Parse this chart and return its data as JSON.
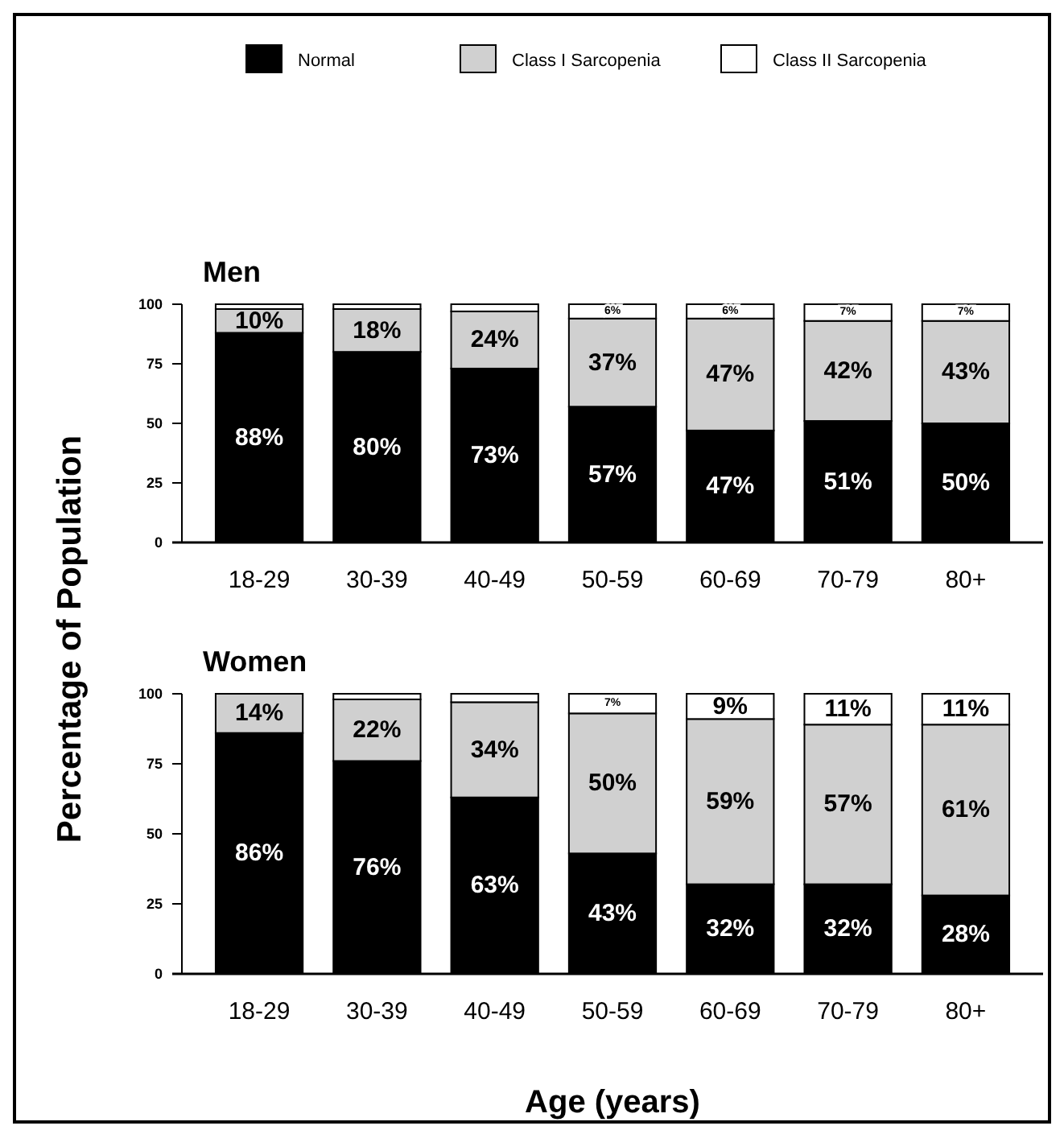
{
  "chart_data": [
    {
      "type": "bar",
      "title": "Men",
      "ylabel": "Percentage of Population",
      "stacked": true,
      "legend": "top",
      "ylim": [
        0,
        100
      ],
      "yticks": [
        0,
        25,
        50,
        75,
        100
      ],
      "categories": [
        "18-29",
        "30-39",
        "40-49",
        "50-59",
        "60-69",
        "70-79",
        "80+"
      ],
      "series": [
        {
          "name": "Normal",
          "color": "#000000",
          "values": [
            88,
            80,
            73,
            57,
            47,
            51,
            50
          ],
          "value_labels": [
            "88%",
            "80%",
            "73%",
            "57%",
            "47%",
            "51%",
            "50%"
          ]
        },
        {
          "name": "Class I Sarcopenia",
          "color": "#d0d0d0",
          "values": [
            10,
            18,
            24,
            37,
            47,
            42,
            43
          ],
          "value_labels": [
            "10%",
            "18%",
            "24%",
            "37%",
            "47%",
            "42%",
            "43%"
          ]
        },
        {
          "name": "Class II Sarcopenia",
          "color": "#ffffff",
          "values": [
            2,
            2,
            3,
            6,
            6,
            7,
            7
          ],
          "value_labels": [
            null,
            null,
            null,
            "6%",
            "6%",
            "7%",
            "7%"
          ]
        }
      ]
    },
    {
      "type": "bar",
      "title": "Women",
      "xlabel": "Age (years)",
      "stacked": true,
      "ylim": [
        0,
        100
      ],
      "yticks": [
        0,
        25,
        50,
        75,
        100
      ],
      "categories": [
        "18-29",
        "30-39",
        "40-49",
        "50-59",
        "60-69",
        "70-79",
        "80+"
      ],
      "series": [
        {
          "color": "#000000",
          "values": [
            86,
            76,
            63,
            43,
            32,
            32,
            28
          ],
          "value_labels": [
            "86%",
            "76%",
            "63%",
            "43%",
            "32%",
            "32%",
            "28%"
          ]
        },
        {
          "color": "#d0d0d0",
          "values": [
            14,
            22,
            34,
            50,
            59,
            57,
            61
          ],
          "value_labels": [
            "14%",
            "22%",
            "34%",
            "50%",
            "59%",
            "57%",
            "61%"
          ]
        },
        {
          "color": "#ffffff",
          "values": [
            0,
            2,
            3,
            7,
            9,
            11,
            11
          ],
          "value_labels": [
            null,
            null,
            null,
            "7%",
            "9%",
            "11%",
            "11%"
          ]
        }
      ]
    }
  ]
}
